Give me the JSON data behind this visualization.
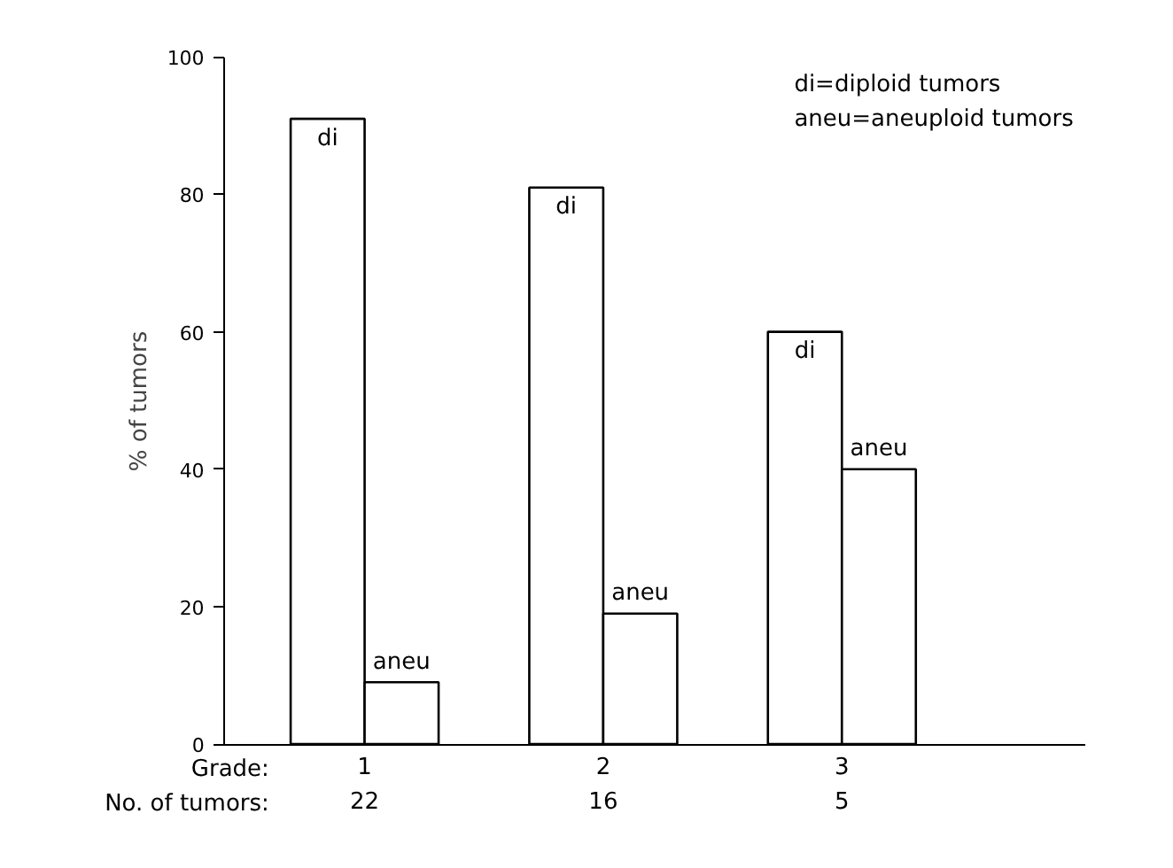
{
  "chart_data": {
    "type": "bar",
    "ylabel": "% of tumors",
    "categories": [
      "1",
      "2",
      "3"
    ],
    "series": [
      {
        "name": "di",
        "color": "#ffffff",
        "values": [
          91,
          81,
          60
        ]
      },
      {
        "name": "aneu",
        "color": "#ffffff",
        "values": [
          9,
          19,
          40
        ]
      }
    ],
    "ylim": [
      0,
      100
    ],
    "yticks": [
      0,
      20,
      40,
      60,
      80,
      100
    ],
    "grid": false,
    "annotations": [
      "di=diploid tumors",
      "aneu=aneuploid tumors",
      "Grade:",
      "No. of tumors:",
      "22",
      "16",
      "5"
    ]
  }
}
